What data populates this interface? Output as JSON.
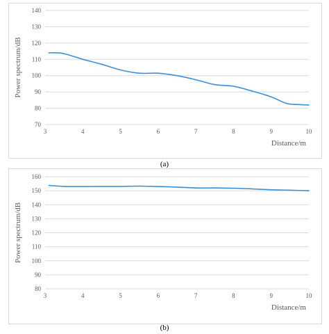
{
  "chart_data": [
    {
      "type": "line",
      "title": "",
      "xlabel": "Distance/m",
      "ylabel": "Power spectrum/dB",
      "xlim": [
        3,
        10
      ],
      "ylim": [
        70,
        140
      ],
      "xticks": [
        3,
        4,
        5,
        6,
        7,
        8,
        9,
        10
      ],
      "yticks": [
        70,
        80,
        90,
        100,
        110,
        120,
        130,
        140
      ],
      "grid": true,
      "legend": "none",
      "color": "#3a8fd6",
      "series": [
        {
          "x": [
            3.1,
            3.3,
            3.5,
            3.8,
            4.0,
            4.5,
            5.0,
            5.5,
            6.0,
            6.5,
            7.0,
            7.5,
            8.0,
            8.5,
            9.0,
            9.4,
            9.7,
            10.0
          ],
          "values": [
            114,
            114,
            113.5,
            111.5,
            110,
            107,
            103.5,
            101.5,
            101.5,
            100,
            97.5,
            94.5,
            93.5,
            90.5,
            87,
            83,
            82.3,
            82
          ]
        }
      ],
      "caption": "(a)"
    },
    {
      "type": "line",
      "title": "",
      "xlabel": "Distance/m",
      "ylabel": "Power spectrum/dB",
      "xlim": [
        3,
        10
      ],
      "ylim": [
        80,
        160
      ],
      "xticks": [
        3,
        4,
        5,
        6,
        7,
        8,
        9,
        10
      ],
      "yticks": [
        80,
        90,
        100,
        110,
        120,
        130,
        140,
        150,
        160
      ],
      "grid": true,
      "legend": "none",
      "color": "#3a8fd6",
      "series": [
        {
          "x": [
            3.1,
            3.5,
            4.0,
            4.5,
            5.0,
            5.5,
            6.0,
            6.5,
            7.0,
            7.5,
            8.0,
            8.5,
            9.0,
            9.5,
            10.0
          ],
          "values": [
            153.8,
            153.1,
            153.0,
            153.1,
            153.1,
            153.3,
            153.0,
            152.6,
            152.0,
            152.0,
            151.8,
            151.3,
            150.7,
            150.4,
            150.0
          ]
        }
      ],
      "caption": "(b)"
    }
  ]
}
